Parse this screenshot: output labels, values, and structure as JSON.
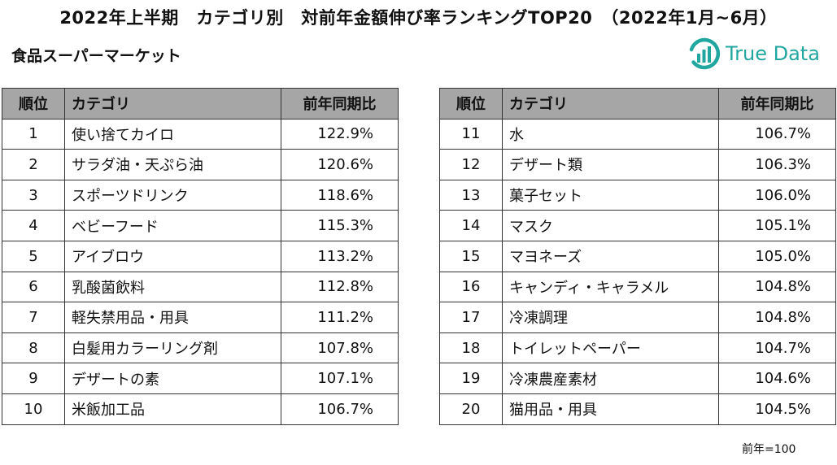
{
  "title": "2022年上半期　カテゴリ別　対前年金額伸び率ランキングTOP20　（2022年1月~6月）",
  "subtitle": "食品スーパーマーケット",
  "logo": {
    "text": "True Data",
    "color": "#22a6a0"
  },
  "table": {
    "headers": {
      "rank": "順位",
      "category": "カテゴリ",
      "value": "前年同期比"
    },
    "header_bg": "#a6a6a6",
    "left_rows": [
      {
        "rank": "1",
        "category": "使い捨てカイロ",
        "value": "122.9%"
      },
      {
        "rank": "2",
        "category": "サラダ油・天ぷら油",
        "value": "120.6%"
      },
      {
        "rank": "3",
        "category": "スポーツドリンク",
        "value": "118.6%"
      },
      {
        "rank": "4",
        "category": "ベビーフード",
        "value": "115.3%"
      },
      {
        "rank": "5",
        "category": "アイブロウ",
        "value": "113.2%"
      },
      {
        "rank": "6",
        "category": "乳酸菌飲料",
        "value": "112.8%"
      },
      {
        "rank": "7",
        "category": "軽失禁用品・用具",
        "value": "111.2%"
      },
      {
        "rank": "8",
        "category": "白髪用カラーリング剤",
        "value": "107.8%"
      },
      {
        "rank": "9",
        "category": "デザートの素",
        "value": "107.1%"
      },
      {
        "rank": "10",
        "category": "米飯加工品",
        "value": "106.7%"
      }
    ],
    "right_rows": [
      {
        "rank": "11",
        "category": "水",
        "value": "106.7%"
      },
      {
        "rank": "12",
        "category": "デザート類",
        "value": "106.3%"
      },
      {
        "rank": "13",
        "category": "菓子セット",
        "value": "106.0%"
      },
      {
        "rank": "14",
        "category": "マスク",
        "value": "105.1%"
      },
      {
        "rank": "15",
        "category": "マヨネーズ",
        "value": "105.0%"
      },
      {
        "rank": "16",
        "category": "キャンディ・キャラメル",
        "value": "104.8%"
      },
      {
        "rank": "17",
        "category": "冷凍調理",
        "value": "104.8%"
      },
      {
        "rank": "18",
        "category": "トイレットペーパー",
        "value": "104.7%"
      },
      {
        "rank": "19",
        "category": "冷凍農産素材",
        "value": "104.6%"
      },
      {
        "rank": "20",
        "category": "猫用品・用具",
        "value": "104.5%"
      }
    ]
  },
  "note": "前年=100"
}
